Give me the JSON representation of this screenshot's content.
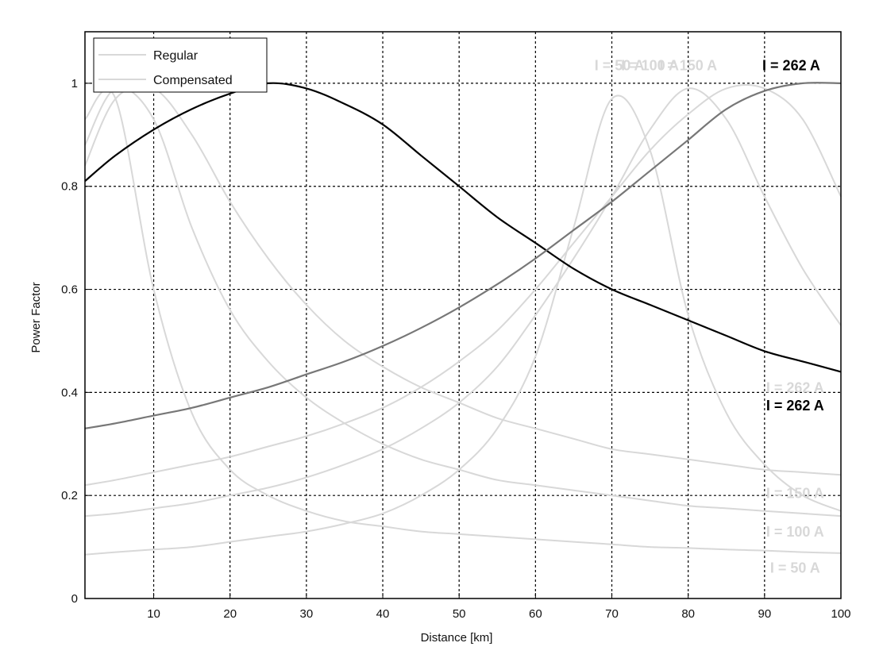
{
  "chart_data": {
    "type": "line",
    "title": "",
    "xlabel": "Distance [km]",
    "ylabel": "Power Factor",
    "xlim": [
      1,
      100
    ],
    "ylim": [
      0,
      1.1
    ],
    "x_ticks": [
      10,
      20,
      30,
      40,
      50,
      60,
      70,
      80,
      90,
      100
    ],
    "y_ticks": [
      0,
      0.2,
      0.4,
      0.6,
      0.8,
      1
    ],
    "y_tick_labels": [
      "0",
      "0.2",
      "0.4",
      "0.6",
      "0.8",
      "1"
    ],
    "grid": true,
    "legend": {
      "placement": "top-left",
      "entries": [
        "Regular",
        "Compensated"
      ]
    },
    "x": [
      1,
      5,
      10,
      15,
      20,
      25,
      30,
      35,
      40,
      45,
      50,
      55,
      60,
      65,
      70,
      75,
      80,
      85,
      90,
      95,
      100
    ],
    "series": [
      {
        "name": "I = 262 A",
        "group": "Regular",
        "color": "#000000",
        "values": [
          0.81,
          0.86,
          0.91,
          0.95,
          0.98,
          1.0,
          0.99,
          0.96,
          0.92,
          0.86,
          0.8,
          0.74,
          0.69,
          0.64,
          0.6,
          0.57,
          0.54,
          0.51,
          0.48,
          0.46,
          0.44
        ]
      },
      {
        "name": "I = 262 A",
        "group": "Compensated",
        "color": "#777777",
        "values": [
          0.33,
          0.34,
          0.355,
          0.37,
          0.39,
          0.41,
          0.435,
          0.46,
          0.49,
          0.525,
          0.565,
          0.61,
          0.66,
          0.715,
          0.77,
          0.83,
          0.89,
          0.95,
          0.985,
          1.0,
          1.0
        ]
      },
      {
        "name": "I = 150 A",
        "group": "Regular",
        "color": "#d8d8d8",
        "values": [
          0.84,
          0.97,
          0.99,
          0.9,
          0.77,
          0.66,
          0.57,
          0.5,
          0.45,
          0.41,
          0.38,
          0.35,
          0.33,
          0.31,
          0.29,
          0.28,
          0.27,
          0.26,
          0.25,
          0.245,
          0.24
        ]
      },
      {
        "name": "I = 150 A",
        "group": "Compensated",
        "color": "#d8d8d8",
        "values": [
          0.22,
          0.23,
          0.245,
          0.26,
          0.275,
          0.295,
          0.315,
          0.34,
          0.37,
          0.41,
          0.46,
          0.52,
          0.6,
          0.69,
          0.78,
          0.87,
          0.94,
          0.99,
          0.99,
          0.93,
          0.78
        ]
      },
      {
        "name": "I = 100 A",
        "group": "Regular",
        "color": "#d8d8d8",
        "values": [
          0.88,
          0.99,
          0.93,
          0.72,
          0.56,
          0.46,
          0.39,
          0.34,
          0.3,
          0.27,
          0.25,
          0.23,
          0.22,
          0.21,
          0.2,
          0.19,
          0.18,
          0.175,
          0.17,
          0.165,
          0.16
        ]
      },
      {
        "name": "I = 100 A",
        "group": "Compensated",
        "color": "#d8d8d8",
        "values": [
          0.16,
          0.165,
          0.175,
          0.185,
          0.2,
          0.215,
          0.235,
          0.26,
          0.29,
          0.33,
          0.38,
          0.45,
          0.55,
          0.66,
          0.78,
          0.91,
          0.99,
          0.93,
          0.78,
          0.64,
          0.53
        ]
      },
      {
        "name": "I = 50 A",
        "group": "Regular",
        "color": "#d8d8d8",
        "values": [
          0.93,
          0.97,
          0.6,
          0.36,
          0.25,
          0.2,
          0.17,
          0.15,
          0.14,
          0.13,
          0.125,
          0.12,
          0.115,
          0.11,
          0.105,
          0.1,
          0.098,
          0.095,
          0.093,
          0.09,
          0.088
        ]
      },
      {
        "name": "I = 50 A",
        "group": "Compensated",
        "color": "#d8d8d8",
        "values": [
          0.085,
          0.09,
          0.095,
          0.1,
          0.11,
          0.12,
          0.13,
          0.145,
          0.165,
          0.2,
          0.25,
          0.33,
          0.47,
          0.72,
          0.97,
          0.87,
          0.55,
          0.36,
          0.26,
          0.2,
          0.17
        ]
      }
    ],
    "annotations": [
      {
        "text": "I = 262 A",
        "x": 93.5,
        "y": 1.025,
        "color": "#000000",
        "bold": true
      },
      {
        "text": "I = 150 A",
        "x": 80,
        "y": 1.025,
        "color": "#d8d8d8",
        "bold": true
      },
      {
        "text": "I = 100 A",
        "x": 75,
        "y": 1.025,
        "color": "#d8d8d8",
        "bold": true
      },
      {
        "text": "I = 50 A",
        "x": 71,
        "y": 1.025,
        "color": "#d8d8d8",
        "bold": true
      },
      {
        "text": "I = 262 A",
        "x": 94,
        "y": 0.4,
        "color": "#d8d8d8",
        "bold": true
      },
      {
        "text": "I = 262 A",
        "x": 94,
        "y": 0.365,
        "color": "#000000",
        "bold": true
      },
      {
        "text": "I = 150 A",
        "x": 94,
        "y": 0.195,
        "color": "#d8d8d8",
        "bold": true
      },
      {
        "text": "I = 100 A",
        "x": 94,
        "y": 0.12,
        "color": "#d8d8d8",
        "bold": true
      },
      {
        "text": "I = 50 A",
        "x": 94,
        "y": 0.05,
        "color": "#d8d8d8",
        "bold": true
      }
    ]
  }
}
